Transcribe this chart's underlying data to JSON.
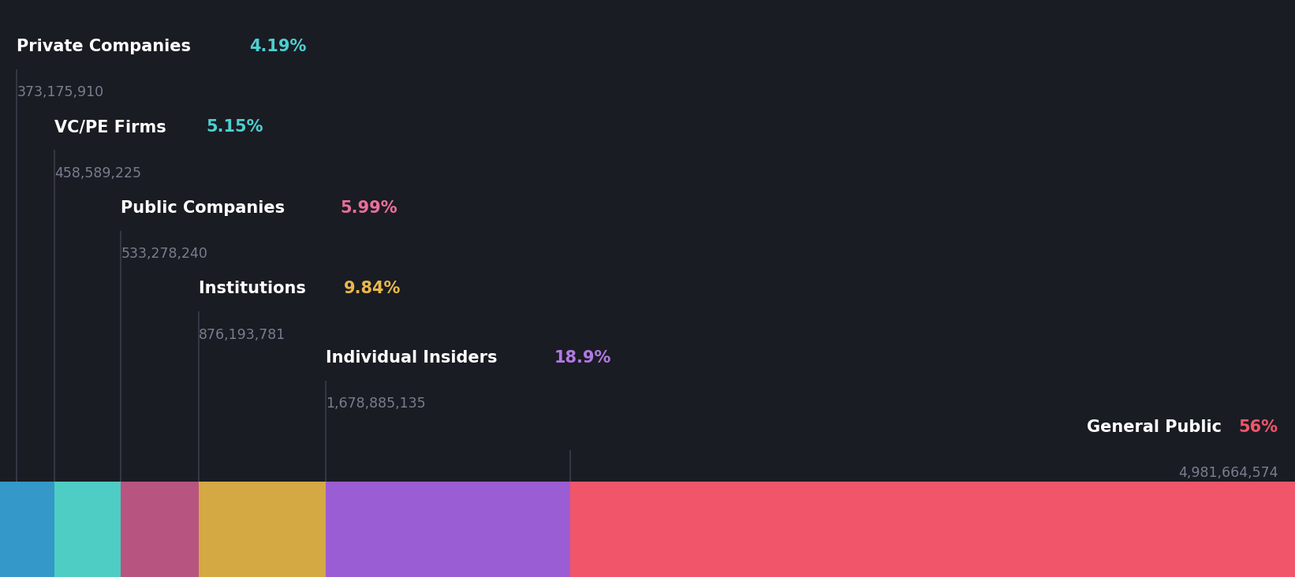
{
  "background_color": "#1a1c23",
  "segments": [
    {
      "label": "Private Companies",
      "pct": "4.19%",
      "value": "373,175,910",
      "pct_num": 4.19,
      "color": "#3498c8",
      "label_color": "#ffffff",
      "pct_color": "#4ecfcf"
    },
    {
      "label": "VC/PE Firms",
      "pct": "5.15%",
      "value": "458,589,225",
      "pct_num": 5.15,
      "color": "#4ecdc4",
      "label_color": "#ffffff",
      "pct_color": "#4ecfcf"
    },
    {
      "label": "Public Companies",
      "pct": "5.99%",
      "value": "533,278,240",
      "pct_num": 5.99,
      "color": "#b85480",
      "label_color": "#ffffff",
      "pct_color": "#e8709a"
    },
    {
      "label": "Institutions",
      "pct": "9.84%",
      "value": "876,193,781",
      "pct_num": 9.84,
      "color": "#d4a843",
      "label_color": "#ffffff",
      "pct_color": "#e8b84b"
    },
    {
      "label": "Individual Insiders",
      "pct": "18.9%",
      "value": "1,678,885,135",
      "pct_num": 18.9,
      "color": "#9b5dd4",
      "label_color": "#ffffff",
      "pct_color": "#b07ae0"
    },
    {
      "label": "General Public",
      "pct": "56%",
      "value": "4,981,664,574",
      "pct_num": 56.0,
      "color": "#f0556a",
      "label_color": "#ffffff",
      "pct_color": "#f0556a"
    }
  ],
  "line_color": "#3a3d4a",
  "label_fontsize": 15,
  "value_fontsize": 12.5,
  "value_color": "#7a7d8e"
}
